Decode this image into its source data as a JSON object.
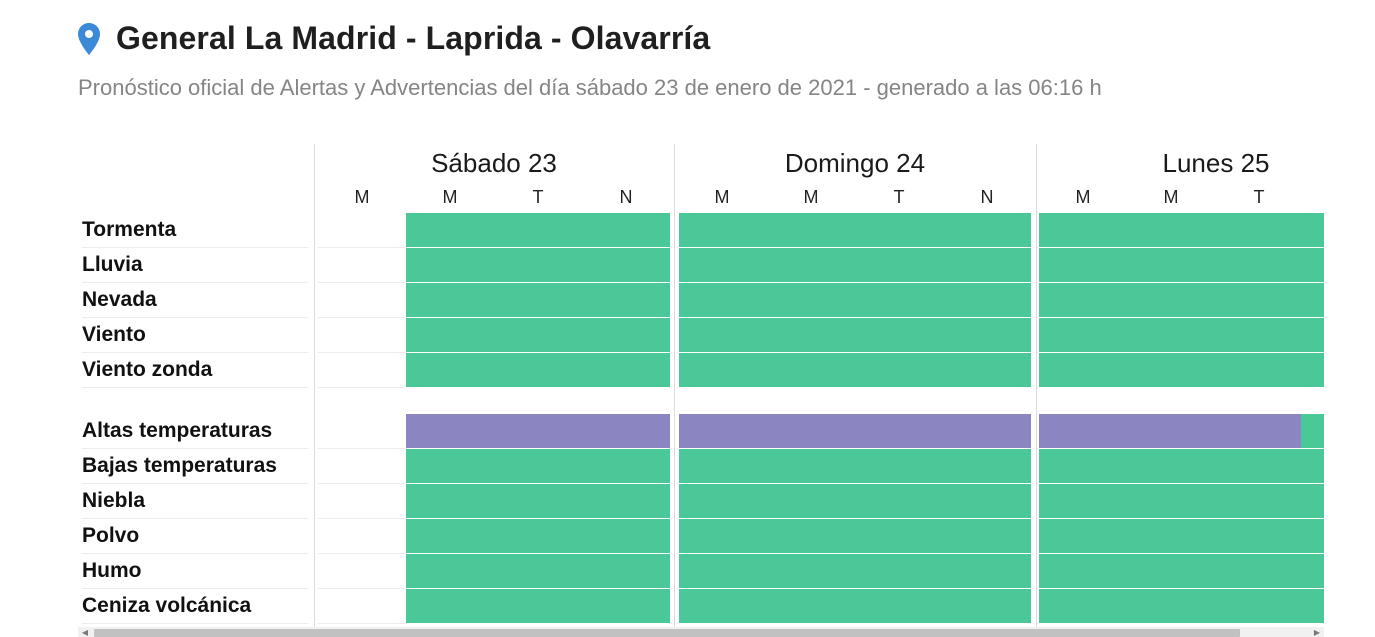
{
  "header": {
    "title": "General La Madrid - Laprida - Olavarría",
    "subtitle": "Pronóstico oficial de Alertas y Advertencias del día sábado 23 de enero de 2021 - generado a las 06:16 h",
    "icon": "map-pin-icon",
    "icon_color": "#3b8ad8"
  },
  "days": [
    {
      "label": "Sábado 23",
      "periods": [
        "M",
        "M",
        "T",
        "N"
      ]
    },
    {
      "label": "Domingo 24",
      "periods": [
        "M",
        "M",
        "T",
        "N"
      ]
    },
    {
      "label": "Lunes 25",
      "periods": [
        "M",
        "M",
        "T"
      ]
    }
  ],
  "groups": [
    {
      "name": "group-1",
      "status": "none",
      "rows": [
        "Tormenta",
        "Lluvia",
        "Nevada",
        "Viento",
        "Viento zonda"
      ]
    },
    {
      "name": "group-2",
      "status": "mixed",
      "rows": [
        "Altas temperaturas",
        "Bajas temperaturas",
        "Niebla",
        "Polvo",
        "Humo",
        "Ceniza volcánica"
      ]
    }
  ],
  "levels": {
    "high_temp_advisory_fraction_lunes": 0.92
  },
  "colors": {
    "no_alert": "#4bc898",
    "advisory": "#8b86c1",
    "divider": "#dcdcdc"
  },
  "scrollbar": {
    "left_arrow": "◀",
    "right_arrow": "▶"
  }
}
